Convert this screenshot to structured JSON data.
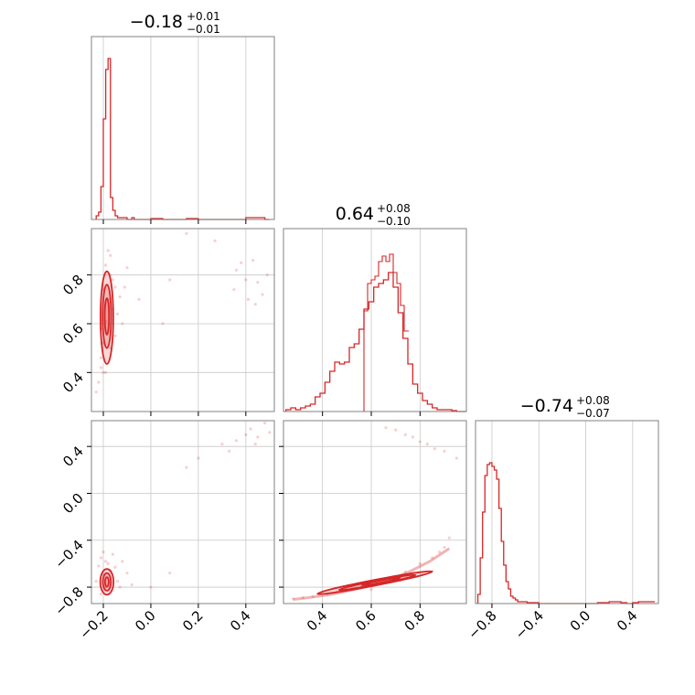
{
  "colors": {
    "series": "#d62728",
    "grid": "#c8c8c8",
    "axes": "#808080",
    "text": "#000000",
    "background": "#ffffff"
  },
  "chart_data": {
    "type": "corner",
    "grid": true,
    "parameters": [
      {
        "title_value": "−0.18",
        "title_plus": "+0.01",
        "title_minus": "−0.01",
        "range": [
          -0.25,
          0.52
        ],
        "ticks": [
          -0.2,
          0.0,
          0.2,
          0.4
        ],
        "tick_labels": [
          "−0.2",
          "0.0",
          "0.2",
          "0.4"
        ]
      },
      {
        "title_value": "0.64",
        "title_plus": "+0.08",
        "title_minus": "−0.10",
        "range": [
          0.24,
          0.99
        ],
        "ticks": [
          0.4,
          0.6,
          0.8
        ],
        "tick_labels": [
          "0.4",
          "0.6",
          "0.8"
        ]
      },
      {
        "title_value": "−0.74",
        "title_plus": "+0.08",
        "title_minus": "−0.07",
        "range": [
          -0.94,
          0.62
        ],
        "ticks": [
          -0.8,
          -0.4,
          0.0,
          0.4
        ],
        "tick_labels": [
          "−0.8",
          "−0.4",
          "0.0",
          "0.4"
        ]
      }
    ],
    "histograms": [
      {
        "param": 0,
        "bins": [
          -0.23,
          -0.22,
          -0.21,
          -0.2,
          -0.19,
          -0.18,
          -0.17,
          -0.16,
          -0.15,
          -0.14,
          -0.13,
          -0.12,
          -0.11,
          -0.1,
          -0.09,
          -0.08,
          -0.07,
          -0.06,
          0.0,
          0.05,
          0.1,
          0.15,
          0.2,
          0.25,
          0.3,
          0.35,
          0.38,
          0.4,
          0.42,
          0.44,
          0.46,
          0.48
        ],
        "counts": [
          0.02,
          0.04,
          0.18,
          0.55,
          0.82,
          0.88,
          0.12,
          0.05,
          0.02,
          0.01,
          0.01,
          0.01,
          0.01,
          0.0,
          0.0,
          0.01,
          0.0,
          0.0,
          0.005,
          0.0,
          0.0,
          0.005,
          0.0,
          0.0,
          0.0,
          0.0,
          0.0,
          0.01,
          0.01,
          0.01,
          0.01,
          0.0
        ]
      },
      {
        "param": 1,
        "bins": [
          0.25,
          0.27,
          0.29,
          0.31,
          0.33,
          0.35,
          0.37,
          0.39,
          0.41,
          0.43,
          0.45,
          0.47,
          0.49,
          0.51,
          0.53,
          0.55,
          0.57,
          0.59,
          0.61,
          0.63,
          0.65,
          0.67,
          0.69,
          0.71,
          0.73,
          0.75,
          0.77,
          0.79,
          0.81,
          0.83,
          0.85,
          0.87,
          0.89,
          0.91,
          0.93,
          0.95,
          0.97
        ],
        "counts": [
          0.01,
          0.02,
          0.01,
          0.02,
          0.03,
          0.04,
          0.08,
          0.1,
          0.16,
          0.22,
          0.27,
          0.26,
          0.27,
          0.35,
          0.37,
          0.45,
          0.56,
          0.6,
          0.68,
          0.7,
          0.72,
          0.76,
          0.68,
          0.54,
          0.4,
          0.26,
          0.15,
          0.1,
          0.06,
          0.04,
          0.02,
          0.01,
          0.01,
          0.01,
          0.005,
          0.0,
          0.0
        ],
        "fine_bins": [
          0.57,
          0.585,
          0.6,
          0.615,
          0.63,
          0.645,
          0.66,
          0.675,
          0.69,
          0.705,
          0.72,
          0.735
        ],
        "fine_counts": [
          0.55,
          0.7,
          0.72,
          0.74,
          0.82,
          0.85,
          0.82,
          0.86,
          0.76,
          0.7,
          0.58,
          0.44
        ]
      },
      {
        "param": 2,
        "bins": [
          -0.92,
          -0.9,
          -0.88,
          -0.86,
          -0.84,
          -0.82,
          -0.8,
          -0.78,
          -0.76,
          -0.74,
          -0.72,
          -0.7,
          -0.68,
          -0.66,
          -0.64,
          -0.62,
          -0.6,
          -0.58,
          -0.56,
          -0.5,
          -0.4,
          -0.2,
          0.0,
          0.1,
          0.2,
          0.3,
          0.35,
          0.4,
          0.45,
          0.5,
          0.55
        ],
        "counts": [
          0.05,
          0.25,
          0.5,
          0.7,
          0.76,
          0.77,
          0.75,
          0.73,
          0.68,
          0.52,
          0.34,
          0.21,
          0.12,
          0.08,
          0.04,
          0.03,
          0.02,
          0.01,
          0.01,
          0.005,
          0.0,
          0.0,
          0.0,
          0.005,
          0.01,
          0.005,
          0.0,
          0.005,
          0.01,
          0.01,
          0.01
        ]
      }
    ],
    "scatter_sets": [
      {
        "x_param": 0,
        "y_param": 1,
        "points": [
          [
            -0.21,
            0.42
          ],
          [
            -0.2,
            0.52
          ],
          [
            -0.19,
            0.61
          ],
          [
            -0.18,
            0.7
          ],
          [
            -0.17,
            0.8
          ],
          [
            -0.16,
            0.66
          ],
          [
            -0.15,
            0.55
          ],
          [
            -0.13,
            0.71
          ],
          [
            -0.1,
            0.83
          ],
          [
            -0.22,
            0.36
          ],
          [
            -0.23,
            0.32
          ],
          [
            -0.21,
            0.46
          ],
          [
            -0.2,
            0.74
          ],
          [
            -0.19,
            0.84
          ],
          [
            -0.18,
            0.9
          ],
          [
            -0.17,
            0.88
          ],
          [
            -0.16,
            0.78
          ],
          [
            -0.14,
            0.64
          ],
          [
            -0.12,
            0.6
          ],
          [
            -0.11,
            0.75
          ],
          [
            -0.05,
            0.7
          ],
          [
            0.05,
            0.6
          ],
          [
            0.08,
            0.78
          ],
          [
            0.15,
            0.97
          ],
          [
            0.27,
            0.94
          ],
          [
            0.36,
            0.82
          ],
          [
            0.4,
            0.78
          ],
          [
            0.41,
            0.7
          ],
          [
            0.43,
            0.86
          ],
          [
            0.45,
            0.77
          ],
          [
            0.38,
            0.85
          ],
          [
            0.47,
            0.72
          ],
          [
            0.49,
            0.8
          ],
          [
            0.44,
            0.68
          ],
          [
            0.35,
            0.74
          ],
          [
            -0.2,
            0.4
          ],
          [
            -0.19,
            0.4
          ],
          [
            -0.21,
            0.58
          ],
          [
            -0.17,
            0.5
          ],
          [
            -0.15,
            0.75
          ]
        ],
        "contours": [
          {
            "center": [
              -0.185,
              0.625
            ],
            "radius": [
              0.027,
              0.19
            ]
          },
          {
            "center": [
              -0.185,
              0.63
            ],
            "radius": [
              0.018,
              0.13
            ]
          },
          {
            "center": [
              -0.185,
              0.63
            ],
            "radius": [
              0.009,
              0.075
            ]
          }
        ]
      },
      {
        "x_param": 0,
        "y_param": 2,
        "points": [
          [
            -0.22,
            -0.62
          ],
          [
            -0.21,
            -0.55
          ],
          [
            -0.2,
            -0.7
          ],
          [
            -0.19,
            -0.8
          ],
          [
            -0.18,
            -0.6
          ],
          [
            -0.17,
            -0.66
          ],
          [
            -0.16,
            -0.52
          ],
          [
            -0.14,
            -0.75
          ],
          [
            -0.12,
            -0.58
          ],
          [
            -0.1,
            -0.68
          ],
          [
            -0.08,
            -0.78
          ],
          [
            0.0,
            -0.8
          ],
          [
            0.08,
            -0.68
          ],
          [
            0.15,
            0.22
          ],
          [
            0.2,
            0.3
          ],
          [
            0.3,
            0.42
          ],
          [
            0.36,
            0.45
          ],
          [
            0.4,
            0.5
          ],
          [
            0.42,
            0.55
          ],
          [
            0.45,
            0.48
          ],
          [
            0.48,
            0.6
          ],
          [
            0.5,
            0.52
          ],
          [
            0.44,
            0.42
          ],
          [
            0.33,
            0.36
          ],
          [
            -0.23,
            -0.75
          ],
          [
            -0.21,
            -0.86
          ],
          [
            -0.2,
            -0.5
          ],
          [
            -0.19,
            -0.58
          ],
          [
            -0.15,
            -0.63
          ],
          [
            -0.13,
            -0.8
          ]
        ],
        "contours": [
          {
            "center": [
              -0.185,
              -0.755
            ],
            "radius": [
              0.028,
              0.11
            ]
          },
          {
            "center": [
              -0.185,
              -0.755
            ],
            "radius": [
              0.017,
              0.075
            ]
          },
          {
            "center": [
              -0.185,
              -0.755
            ],
            "radius": [
              0.008,
              0.04
            ]
          }
        ]
      },
      {
        "x_param": 1,
        "y_param": 2,
        "points": [
          [
            0.28,
            -0.9
          ],
          [
            0.32,
            -0.89
          ],
          [
            0.36,
            -0.88
          ],
          [
            0.42,
            -0.86
          ],
          [
            0.5,
            -0.82
          ],
          [
            0.56,
            -0.8
          ],
          [
            0.62,
            -0.76
          ],
          [
            0.68,
            -0.72
          ],
          [
            0.74,
            -0.67
          ],
          [
            0.8,
            -0.6
          ],
          [
            0.85,
            -0.55
          ],
          [
            0.88,
            -0.5
          ],
          [
            0.9,
            -0.46
          ],
          [
            0.92,
            -0.38
          ],
          [
            0.66,
            0.56
          ],
          [
            0.7,
            0.54
          ],
          [
            0.74,
            0.5
          ],
          [
            0.77,
            0.48
          ],
          [
            0.8,
            0.44
          ],
          [
            0.9,
            0.36
          ],
          [
            0.95,
            0.3
          ],
          [
            0.72,
            -0.74
          ],
          [
            0.6,
            -0.82
          ],
          [
            0.46,
            -0.84
          ],
          [
            0.83,
            0.42
          ],
          [
            0.86,
            0.38
          ]
        ],
        "band_line": [
          [
            0.28,
            -0.905
          ],
          [
            0.36,
            -0.885
          ],
          [
            0.44,
            -0.86
          ],
          [
            0.52,
            -0.825
          ],
          [
            0.6,
            -0.785
          ],
          [
            0.68,
            -0.735
          ],
          [
            0.76,
            -0.665
          ],
          [
            0.84,
            -0.58
          ],
          [
            0.92,
            -0.47
          ]
        ],
        "contours": [
          {
            "center": [
              0.615,
              -0.762
            ],
            "radius": [
              0.24,
              0.024
            ],
            "angle_deg": -11
          },
          {
            "center": [
              0.625,
              -0.76
            ],
            "radius": [
              0.16,
              0.016
            ],
            "angle_deg": -11
          },
          {
            "center": [
              0.64,
              -0.752
            ],
            "radius": [
              0.08,
              0.009
            ],
            "angle_deg": -11
          }
        ]
      }
    ]
  }
}
